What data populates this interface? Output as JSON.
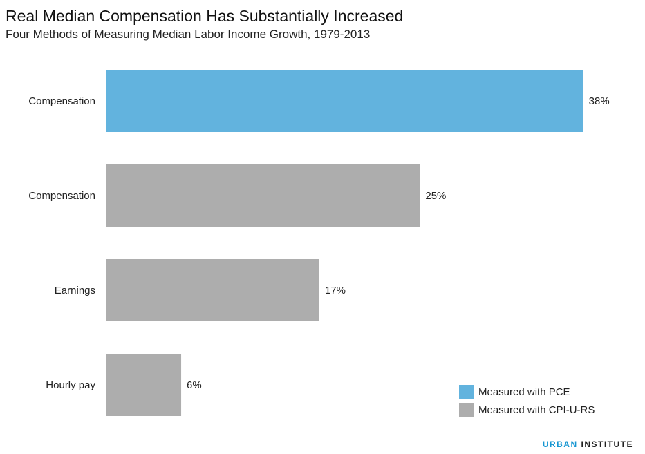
{
  "chart_data": {
    "type": "bar",
    "orientation": "horizontal",
    "title": "Real Median Compensation Has Substantially Increased",
    "subtitle": "Four Methods of Measuring Median Labor Income Growth, 1979-2013",
    "categories": [
      "Compensation",
      "Compensation",
      "Earnings",
      "Hourly pay"
    ],
    "values": [
      38,
      25,
      17,
      6
    ],
    "value_labels": [
      "38%",
      "25%",
      "17%",
      "6%"
    ],
    "bar_series": [
      "Measured with PCE",
      "Measured with CPI-U-RS",
      "Measured with CPI-U-RS",
      "Measured with CPI-U-RS"
    ],
    "xlim": [
      0,
      40
    ],
    "grid": false,
    "legend_position": "bottom-right",
    "legend": [
      {
        "name": "Measured with PCE",
        "color": "#62b3de"
      },
      {
        "name": "Measured with CPI-U-RS",
        "color": "#adadad"
      }
    ]
  },
  "footer": {
    "brand": "URBAN",
    "rest": "INSTITUTE"
  }
}
